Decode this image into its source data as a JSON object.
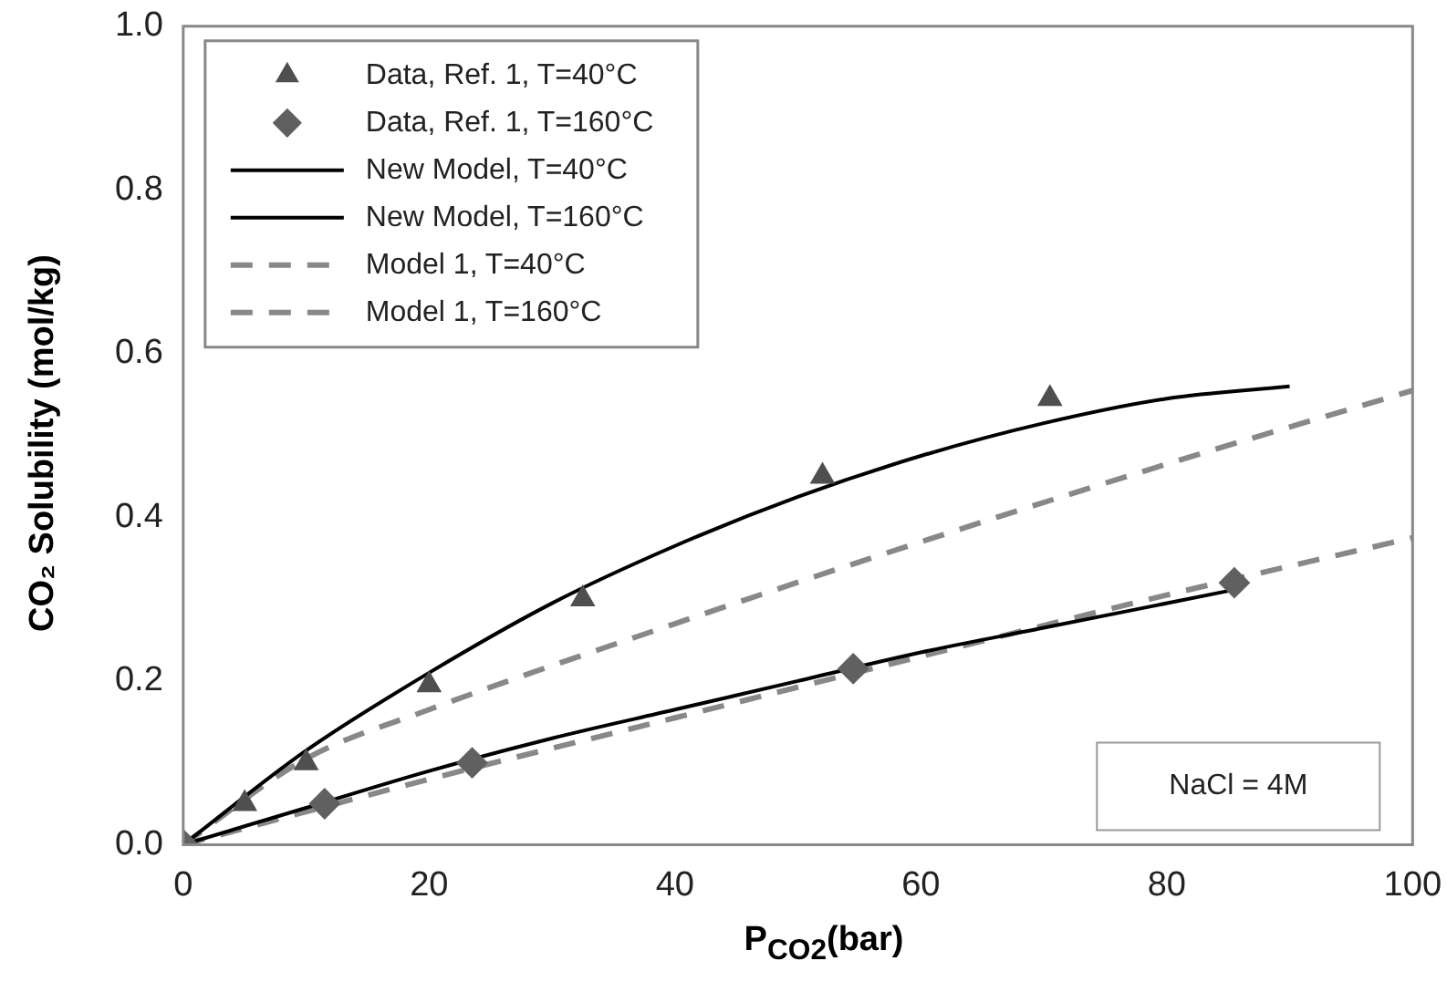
{
  "chart_data": {
    "type": "line",
    "xlabel": "P$_{CO2}$(bar)",
    "ylabel": "CO₂ Solubility (mol/kg)",
    "xlim": [
      0,
      100
    ],
    "xticks": [
      0,
      20,
      40,
      60,
      80,
      100
    ],
    "ylim": [
      0,
      1
    ],
    "yticks": [
      {
        "value": 0,
        "label": "0.0"
      },
      {
        "value": 0.2,
        "label": "0.2"
      },
      {
        "value": 0.4,
        "label": "0.4"
      },
      {
        "value": 0.6,
        "label": "0.6"
      },
      {
        "value": 0.8,
        "label": "0.8"
      },
      {
        "value": 1,
        "label": "1.0"
      }
    ],
    "grid": false,
    "legend": "top left",
    "annotations": [
      "NaCl = 4M"
    ],
    "series": [
      {
        "name": "Data, Ref. 1, T=40°C",
        "type": "scatter",
        "marker": "triangle",
        "color": "#4f4f4f",
        "x": [
          5,
          10,
          20,
          32.5,
          52,
          70.5
        ],
        "values": [
          0.05,
          0.1,
          0.195,
          0.3,
          0.45,
          0.545
        ]
      },
      {
        "name": "Data, Ref. 1, T=160°C",
        "type": "scatter",
        "marker": "diamond",
        "color": "#606060",
        "x": [
          0,
          11.5,
          23.5,
          54.5,
          85.5
        ],
        "values": [
          0,
          0.05,
          0.1,
          0.215,
          0.32
        ]
      },
      {
        "name": "New Model, T=40°C",
        "line_style": "solid",
        "color": "#000000",
        "x": [
          0,
          10,
          20,
          30,
          40,
          50,
          60,
          70,
          80,
          90
        ],
        "values": [
          0,
          0.115,
          0.21,
          0.295,
          0.365,
          0.425,
          0.475,
          0.515,
          0.545,
          0.56
        ]
      },
      {
        "name": "New Model, T=160°C",
        "line_style": "solid",
        "color": "#000000",
        "x": [
          0,
          10,
          20,
          30,
          40,
          50,
          60,
          70,
          85
        ],
        "values": [
          0,
          0.045,
          0.09,
          0.13,
          0.165,
          0.2,
          0.235,
          0.265,
          0.31
        ]
      },
      {
        "name": "Model 1, T=40°C",
        "line_style": "dashed",
        "color": "#888888",
        "x": [
          0,
          10,
          20,
          40,
          60,
          80,
          100
        ],
        "values": [
          0,
          0.105,
          0.165,
          0.27,
          0.37,
          0.465,
          0.555
        ]
      },
      {
        "name": "Model 1, T=160°C",
        "line_style": "dashed",
        "color": "#888888",
        "x": [
          0,
          20,
          40,
          60,
          80,
          100
        ],
        "values": [
          0,
          0.08,
          0.155,
          0.23,
          0.305,
          0.375
        ]
      }
    ]
  }
}
